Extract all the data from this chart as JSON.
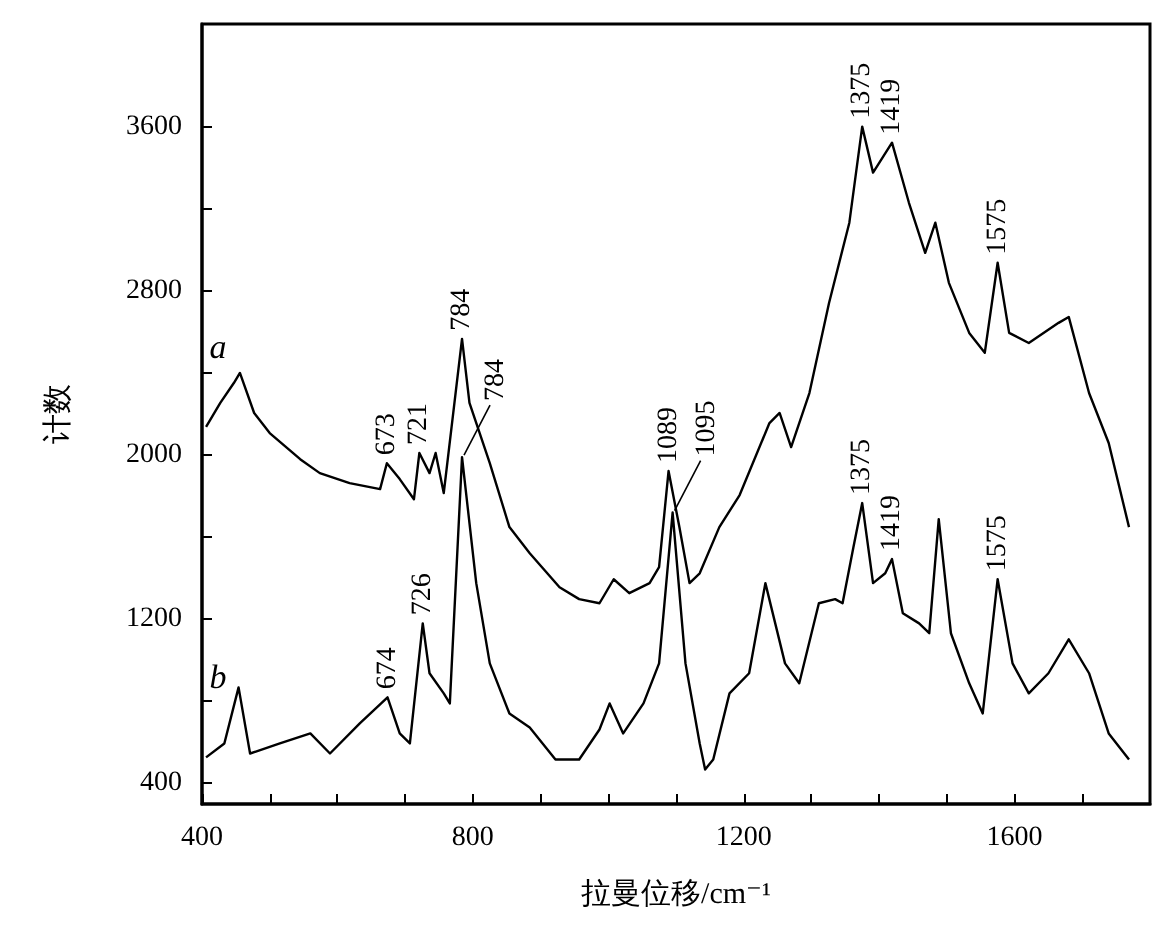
{
  "chart_data": {
    "type": "line",
    "xlabel": "拉曼位移/cm⁻¹",
    "ylabel": "计数",
    "xlim": [
      400,
      1800
    ],
    "ylim": [
      300,
      4100
    ],
    "xticks": [
      400,
      {
        "value": 500,
        "label": null
      },
      {
        "value": 600,
        "label": null
      },
      {
        "value": 700,
        "label": null
      },
      800,
      {
        "value": 900,
        "label": null
      },
      {
        "value": 1000,
        "label": null
      },
      {
        "value": 1100,
        "label": null
      },
      1200,
      {
        "value": 1300,
        "label": null
      },
      {
        "value": 1400,
        "label": null
      },
      {
        "value": 1500,
        "label": null
      },
      1600,
      {
        "value": 1700,
        "label": null
      }
    ],
    "yticks": [
      400,
      {
        "value": 800,
        "label": null
      },
      1200,
      {
        "value": 1600,
        "label": null
      },
      2000,
      {
        "value": 2400,
        "label": null
      },
      2800,
      {
        "value": 3200,
        "label": null
      },
      3600
    ],
    "series": [
      {
        "name": "a",
        "color": "#000000",
        "x": [
          406,
          427,
          447,
          456,
          477,
          500,
          545,
          574,
          618,
          663,
          673,
          692,
          713,
          721,
          736,
          745,
          757,
          784,
          795,
          825,
          854,
          884,
          928,
          957,
          987,
          1008,
          1031,
          1061,
          1075,
          1089,
          1105,
          1120,
          1135,
          1164,
          1194,
          1238,
          1253,
          1270,
          1297,
          1326,
          1356,
          1375,
          1391,
          1419,
          1444,
          1468,
          1483,
          1503,
          1533,
          1556,
          1575,
          1592,
          1621,
          1665,
          1680,
          1710,
          1739,
          1769
        ],
        "values": [
          2137,
          2254,
          2351,
          2400,
          2205,
          2107,
          1980,
          1912,
          1863,
          1834,
          1960,
          1883,
          1785,
          2010,
          1912,
          2010,
          1815,
          2566,
          2254,
          1961,
          1649,
          1522,
          1356,
          1298,
          1278,
          1395,
          1327,
          1376,
          1454,
          1922,
          1649,
          1376,
          1424,
          1649,
          1805,
          2156,
          2205,
          2039,
          2302,
          2741,
          3132,
          3600,
          3376,
          3522,
          3229,
          2985,
          3132,
          2839,
          2595,
          2498,
          2937,
          2595,
          2546,
          2644,
          2673,
          2302,
          2059,
          1649
        ]
      },
      {
        "name": "b",
        "color": "#000000",
        "x": [
          406,
          433,
          454,
          471,
          515,
          560,
          589,
          633,
          674,
          692,
          707,
          726,
          736,
          757,
          766,
          784,
          805,
          825,
          854,
          884,
          922,
          957,
          987,
          1002,
          1022,
          1052,
          1075,
          1095,
          1114,
          1135,
          1143,
          1155,
          1179,
          1208,
          1232,
          1261,
          1282,
          1311,
          1335,
          1346,
          1362,
          1375,
          1391,
          1409,
          1419,
          1435,
          1459,
          1474,
          1488,
          1506,
          1533,
          1553,
          1575,
          1597,
          1621,
          1650,
          1680,
          1710,
          1739,
          1769
        ],
        "values": [
          527,
          595,
          868,
          546,
          595,
          644,
          546,
          693,
          820,
          644,
          595,
          1180,
          937,
          839,
          790,
          1990,
          1376,
          985,
          741,
          673,
          517,
          517,
          663,
          790,
          644,
          790,
          985,
          1720,
          985,
          595,
          468,
          517,
          839,
          937,
          1376,
          985,
          888,
          1278,
          1298,
          1278,
          1551,
          1766,
          1376,
          1424,
          1493,
          1229,
          1180,
          1132,
          1688,
          1132,
          888,
          741,
          1395,
          985,
          839,
          937,
          1102,
          937,
          644,
          517
        ]
      }
    ],
    "annotations": [
      {
        "text": "673",
        "x": 673,
        "y": 1960
      },
      {
        "text": "721",
        "x": 721,
        "y": 2010
      },
      {
        "text": "784",
        "x": 784,
        "y": 2566
      },
      {
        "text": "1089",
        "x": 1089,
        "y": 1922
      },
      {
        "text": "1375",
        "x": 1375,
        "y": 3600
      },
      {
        "text": "1419",
        "x": 1419,
        "y": 3522
      },
      {
        "text": "1575",
        "x": 1575,
        "y": 2937
      },
      {
        "text": "674",
        "x": 674,
        "y": 820
      },
      {
        "text": "726",
        "x": 726,
        "y": 1180
      },
      {
        "text": "784",
        "x": 784,
        "y": 1990
      },
      {
        "text": "1095",
        "x": 1095,
        "y": 1720
      },
      {
        "text": "1375",
        "x": 1375,
        "y": 1766
      },
      {
        "text": "1419",
        "x": 1419,
        "y": 1493
      },
      {
        "text": "1575",
        "x": 1575,
        "y": 1395
      }
    ]
  }
}
